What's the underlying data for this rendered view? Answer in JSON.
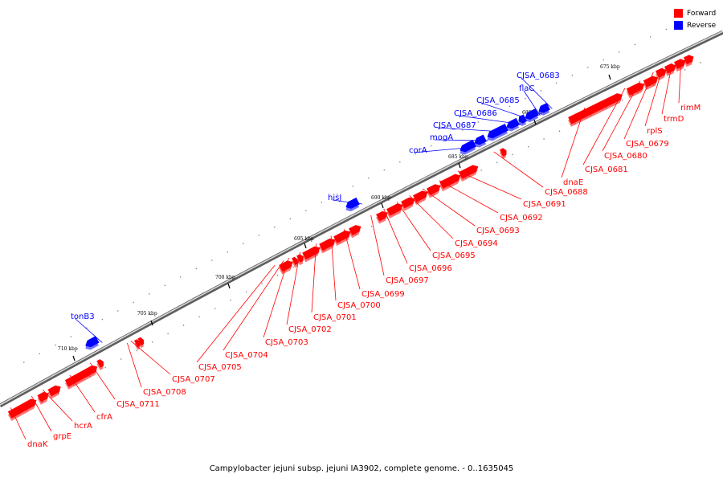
{
  "legend": {
    "forward": {
      "label": "Forward",
      "color": "#ff0000"
    },
    "reverse": {
      "label": "Reverse",
      "color": "#0000ff"
    }
  },
  "caption": "Campylobacter jejuni subsp. jejuni IA3902, complete genome. - 0..1635045",
  "ruler": [
    "675 kbp",
    "680 kbp",
    "685 kbp",
    "690 kbp",
    "695 kbp",
    "700 kbp",
    "705 kbp",
    "710 kbp"
  ],
  "genes": [
    {
      "name": "rimM",
      "strand": "forward"
    },
    {
      "name": "trmD",
      "strand": "forward"
    },
    {
      "name": "rplS",
      "strand": "forward"
    },
    {
      "name": "CJSA_0679",
      "strand": "forward"
    },
    {
      "name": "CJSA_0680",
      "strand": "forward"
    },
    {
      "name": "CJSA_0681",
      "strand": "forward"
    },
    {
      "name": "dnaE",
      "strand": "forward"
    },
    {
      "name": "CJSA_0688",
      "strand": "forward"
    },
    {
      "name": "CJSA_0691",
      "strand": "forward"
    },
    {
      "name": "CJSA_0692",
      "strand": "forward"
    },
    {
      "name": "CJSA_0693",
      "strand": "forward"
    },
    {
      "name": "CJSA_0694",
      "strand": "forward"
    },
    {
      "name": "CJSA_0695",
      "strand": "forward"
    },
    {
      "name": "CJSA_0696",
      "strand": "forward"
    },
    {
      "name": "CJSA_0697",
      "strand": "forward"
    },
    {
      "name": "CJSA_0699",
      "strand": "forward"
    },
    {
      "name": "CJSA_0700",
      "strand": "forward"
    },
    {
      "name": "CJSA_0701",
      "strand": "forward"
    },
    {
      "name": "CJSA_0702",
      "strand": "forward"
    },
    {
      "name": "CJSA_0703",
      "strand": "forward"
    },
    {
      "name": "CJSA_0704",
      "strand": "forward"
    },
    {
      "name": "CJSA_0705",
      "strand": "forward"
    },
    {
      "name": "CJSA_0707",
      "strand": "forward"
    },
    {
      "name": "CJSA_0708",
      "strand": "forward"
    },
    {
      "name": "CJSA_0711",
      "strand": "forward"
    },
    {
      "name": "cfrA",
      "strand": "forward"
    },
    {
      "name": "hcrA",
      "strand": "forward"
    },
    {
      "name": "grpE",
      "strand": "forward"
    },
    {
      "name": "dnaK",
      "strand": "forward"
    },
    {
      "name": "CJSA_0683",
      "strand": "reverse"
    },
    {
      "name": "flaC",
      "strand": "reverse"
    },
    {
      "name": "CJSA_0685",
      "strand": "reverse"
    },
    {
      "name": "CJSA_0686",
      "strand": "reverse"
    },
    {
      "name": "CJSA_0687",
      "strand": "reverse"
    },
    {
      "name": "mogA",
      "strand": "reverse"
    },
    {
      "name": "corA",
      "strand": "reverse"
    },
    {
      "name": "hisJ",
      "strand": "reverse"
    },
    {
      "name": "tonB3",
      "strand": "reverse"
    }
  ]
}
